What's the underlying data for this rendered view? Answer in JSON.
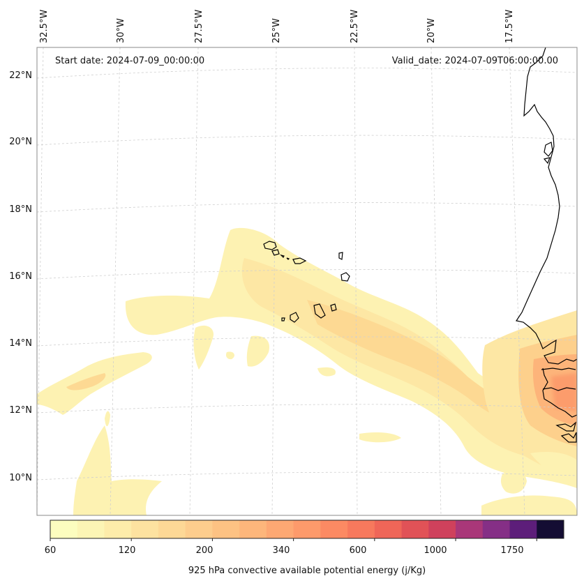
{
  "header": {
    "start_date": "Start date: 2024-07-09_00:00:00",
    "valid_date": "Valid_date: 2024-07-09T06:00:00.00"
  },
  "lon_labels": [
    "32.5°W",
    "30°W",
    "27.5°W",
    "25°W",
    "22.5°W",
    "20°W",
    "17.5°W"
  ],
  "lat_labels": [
    "22°N",
    "20°N",
    "18°N",
    "16°N",
    "14°N",
    "12°N",
    "10°N"
  ],
  "colorbar": {
    "title": "925 hPa convective available potential energy (j/Kg)",
    "tick_labels": [
      "60",
      "120",
      "200",
      "340",
      "600",
      "1000",
      "1750"
    ],
    "colors": [
      "#fcfdbf",
      "#fcf5b5",
      "#fdecaa",
      "#fde2a0",
      "#fdd896",
      "#fdcd8d",
      "#fdc283",
      "#fdb67b",
      "#fda873",
      "#fd9a6b",
      "#fc8a63",
      "#f7795d",
      "#ef6658",
      "#e15257",
      "#cf415c",
      "#a93779",
      "#852f86",
      "#5d1e7a",
      "#140d33"
    ]
  },
  "map": {
    "region": "Cabo Verde and West African coast",
    "gridlines": true
  }
}
